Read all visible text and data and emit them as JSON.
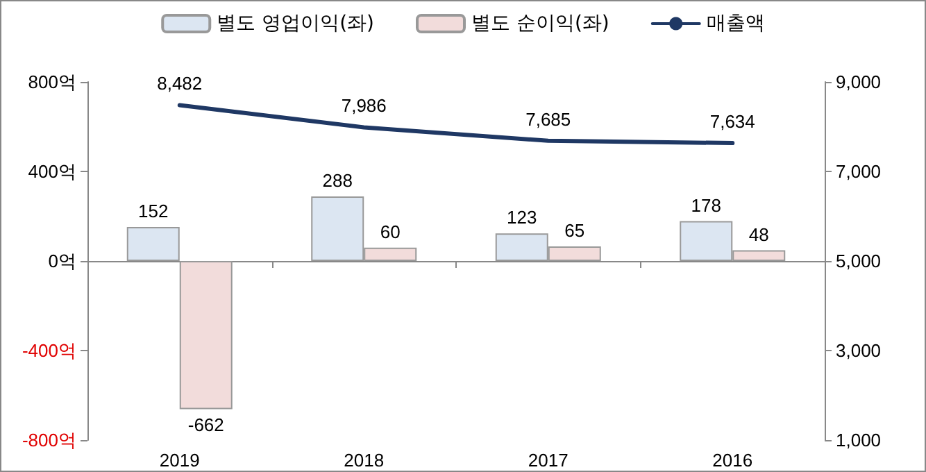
{
  "chart_data": {
    "type": "bar",
    "categories": [
      "2019",
      "2018",
      "2017",
      "2016"
    ],
    "series": [
      {
        "name": "별도 영업이익(좌)",
        "color": "#dce6f2",
        "values": [
          152,
          288,
          123,
          178
        ]
      },
      {
        "name": "별도 순이익(좌)",
        "color": "#f2dcdb",
        "values": [
          -662,
          60,
          65,
          48
        ]
      },
      {
        "name": "매출액",
        "type": "line",
        "axis": "y2",
        "color": "#1f3864",
        "values": [
          8482,
          7986,
          7685,
          7634
        ],
        "value_labels": [
          "8,482",
          "7,986",
          "7,685",
          "7,634"
        ]
      }
    ],
    "ylim": [
      -800,
      800
    ],
    "yticks": [
      {
        "value": -800,
        "label": "-800억"
      },
      {
        "value": -400,
        "label": "-400억"
      },
      {
        "value": 0,
        "label": "0억"
      },
      {
        "value": 400,
        "label": "400억"
      },
      {
        "value": 800,
        "label": "800억"
      }
    ],
    "y2lim": [
      1000,
      9000
    ],
    "y2ticks": [
      {
        "value": 1000,
        "label": "1,000"
      },
      {
        "value": 3000,
        "label": "3,000"
      },
      {
        "value": 5000,
        "label": "5,000"
      },
      {
        "value": 7000,
        "label": "7,000"
      },
      {
        "value": 9000,
        "label": "9,000"
      }
    ],
    "data_labels": true,
    "legend": "top",
    "marker": "none",
    "line_style": "solid"
  }
}
